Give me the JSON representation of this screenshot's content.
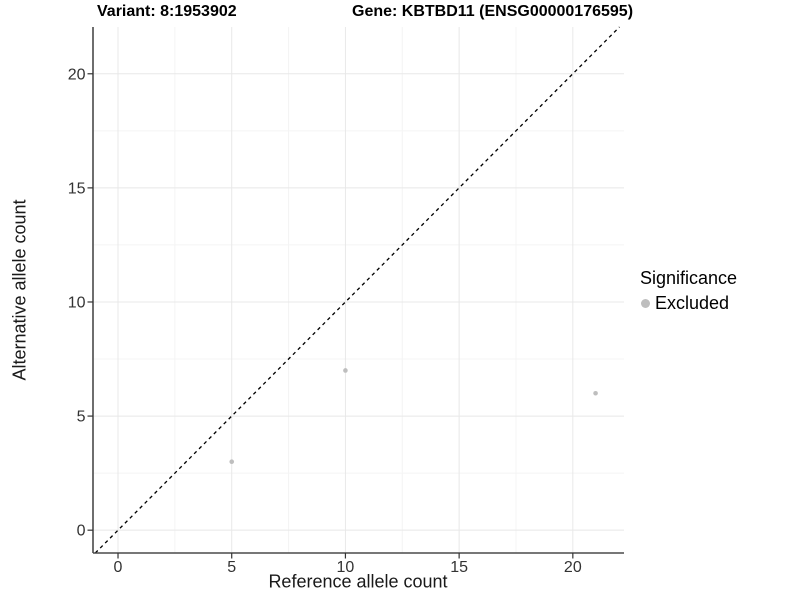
{
  "chart_data": {
    "type": "scatter",
    "title_variant": "Variant: 8:1953902",
    "title_gene": "Gene: KBTBD11 (ENSG00000176595)",
    "xlabel": "Reference allele count",
    "ylabel": "Alternative allele count",
    "x_ticks": [
      0,
      5,
      10,
      15,
      20
    ],
    "y_ticks": [
      0,
      5,
      10,
      15,
      20
    ],
    "xlim": [
      -1.1,
      22.25
    ],
    "ylim": [
      -1.0,
      22.05
    ],
    "series": [
      {
        "name": "Excluded",
        "color": "#bebebe",
        "points": [
          {
            "x": 5,
            "y": 3
          },
          {
            "x": 10,
            "y": 7
          },
          {
            "x": 21,
            "y": 6
          }
        ]
      }
    ],
    "identity_line": {
      "style": "dashed",
      "color": "#000000"
    },
    "legend": {
      "title": "Significance",
      "position": "right"
    },
    "grid": {
      "major_color": "#e8e8e8",
      "minor_color": "#f4f4f4"
    },
    "axis_color": "#4a4a4a",
    "tick_label_color": "#333333"
  }
}
